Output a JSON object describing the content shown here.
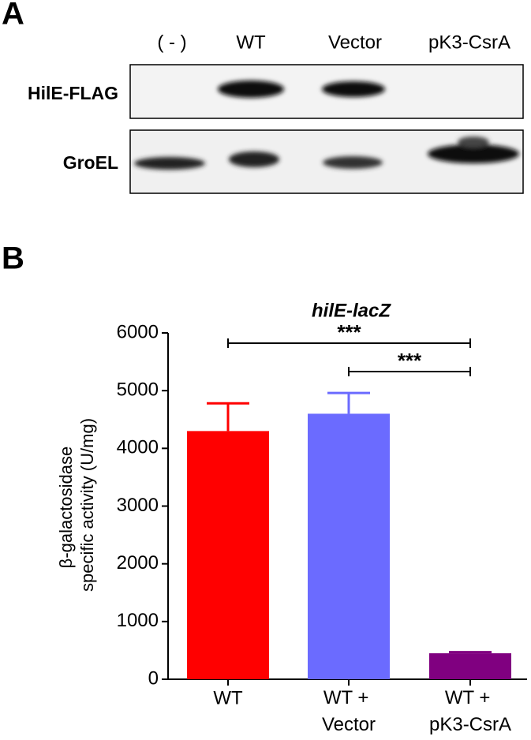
{
  "blot": {
    "panel_label": "A",
    "lanes": [
      "( - )",
      "WT",
      "Vector",
      "pK3-CsrA"
    ],
    "rows": [
      "HilE-FLAG",
      "GroEL"
    ]
  },
  "chart_data": {
    "type": "bar",
    "panel_label": "B",
    "title": "hilE-lacZ",
    "ylabel": "β-galactosidase specific activity (U/mg)",
    "categories": [
      "WT",
      "WT + Vector",
      "WT + pK3-CsrA"
    ],
    "values": [
      4300,
      4600,
      450
    ],
    "errors": [
      480,
      360,
      20
    ],
    "colors": [
      "#ff0000",
      "#6b6bff",
      "#800080"
    ],
    "ylim": [
      0,
      6000
    ],
    "yticks": [
      0,
      1000,
      2000,
      3000,
      4000,
      5000,
      6000
    ],
    "significance": [
      {
        "from": 0,
        "to": 2,
        "label": "***"
      },
      {
        "from": 1,
        "to": 2,
        "label": "***"
      }
    ]
  }
}
